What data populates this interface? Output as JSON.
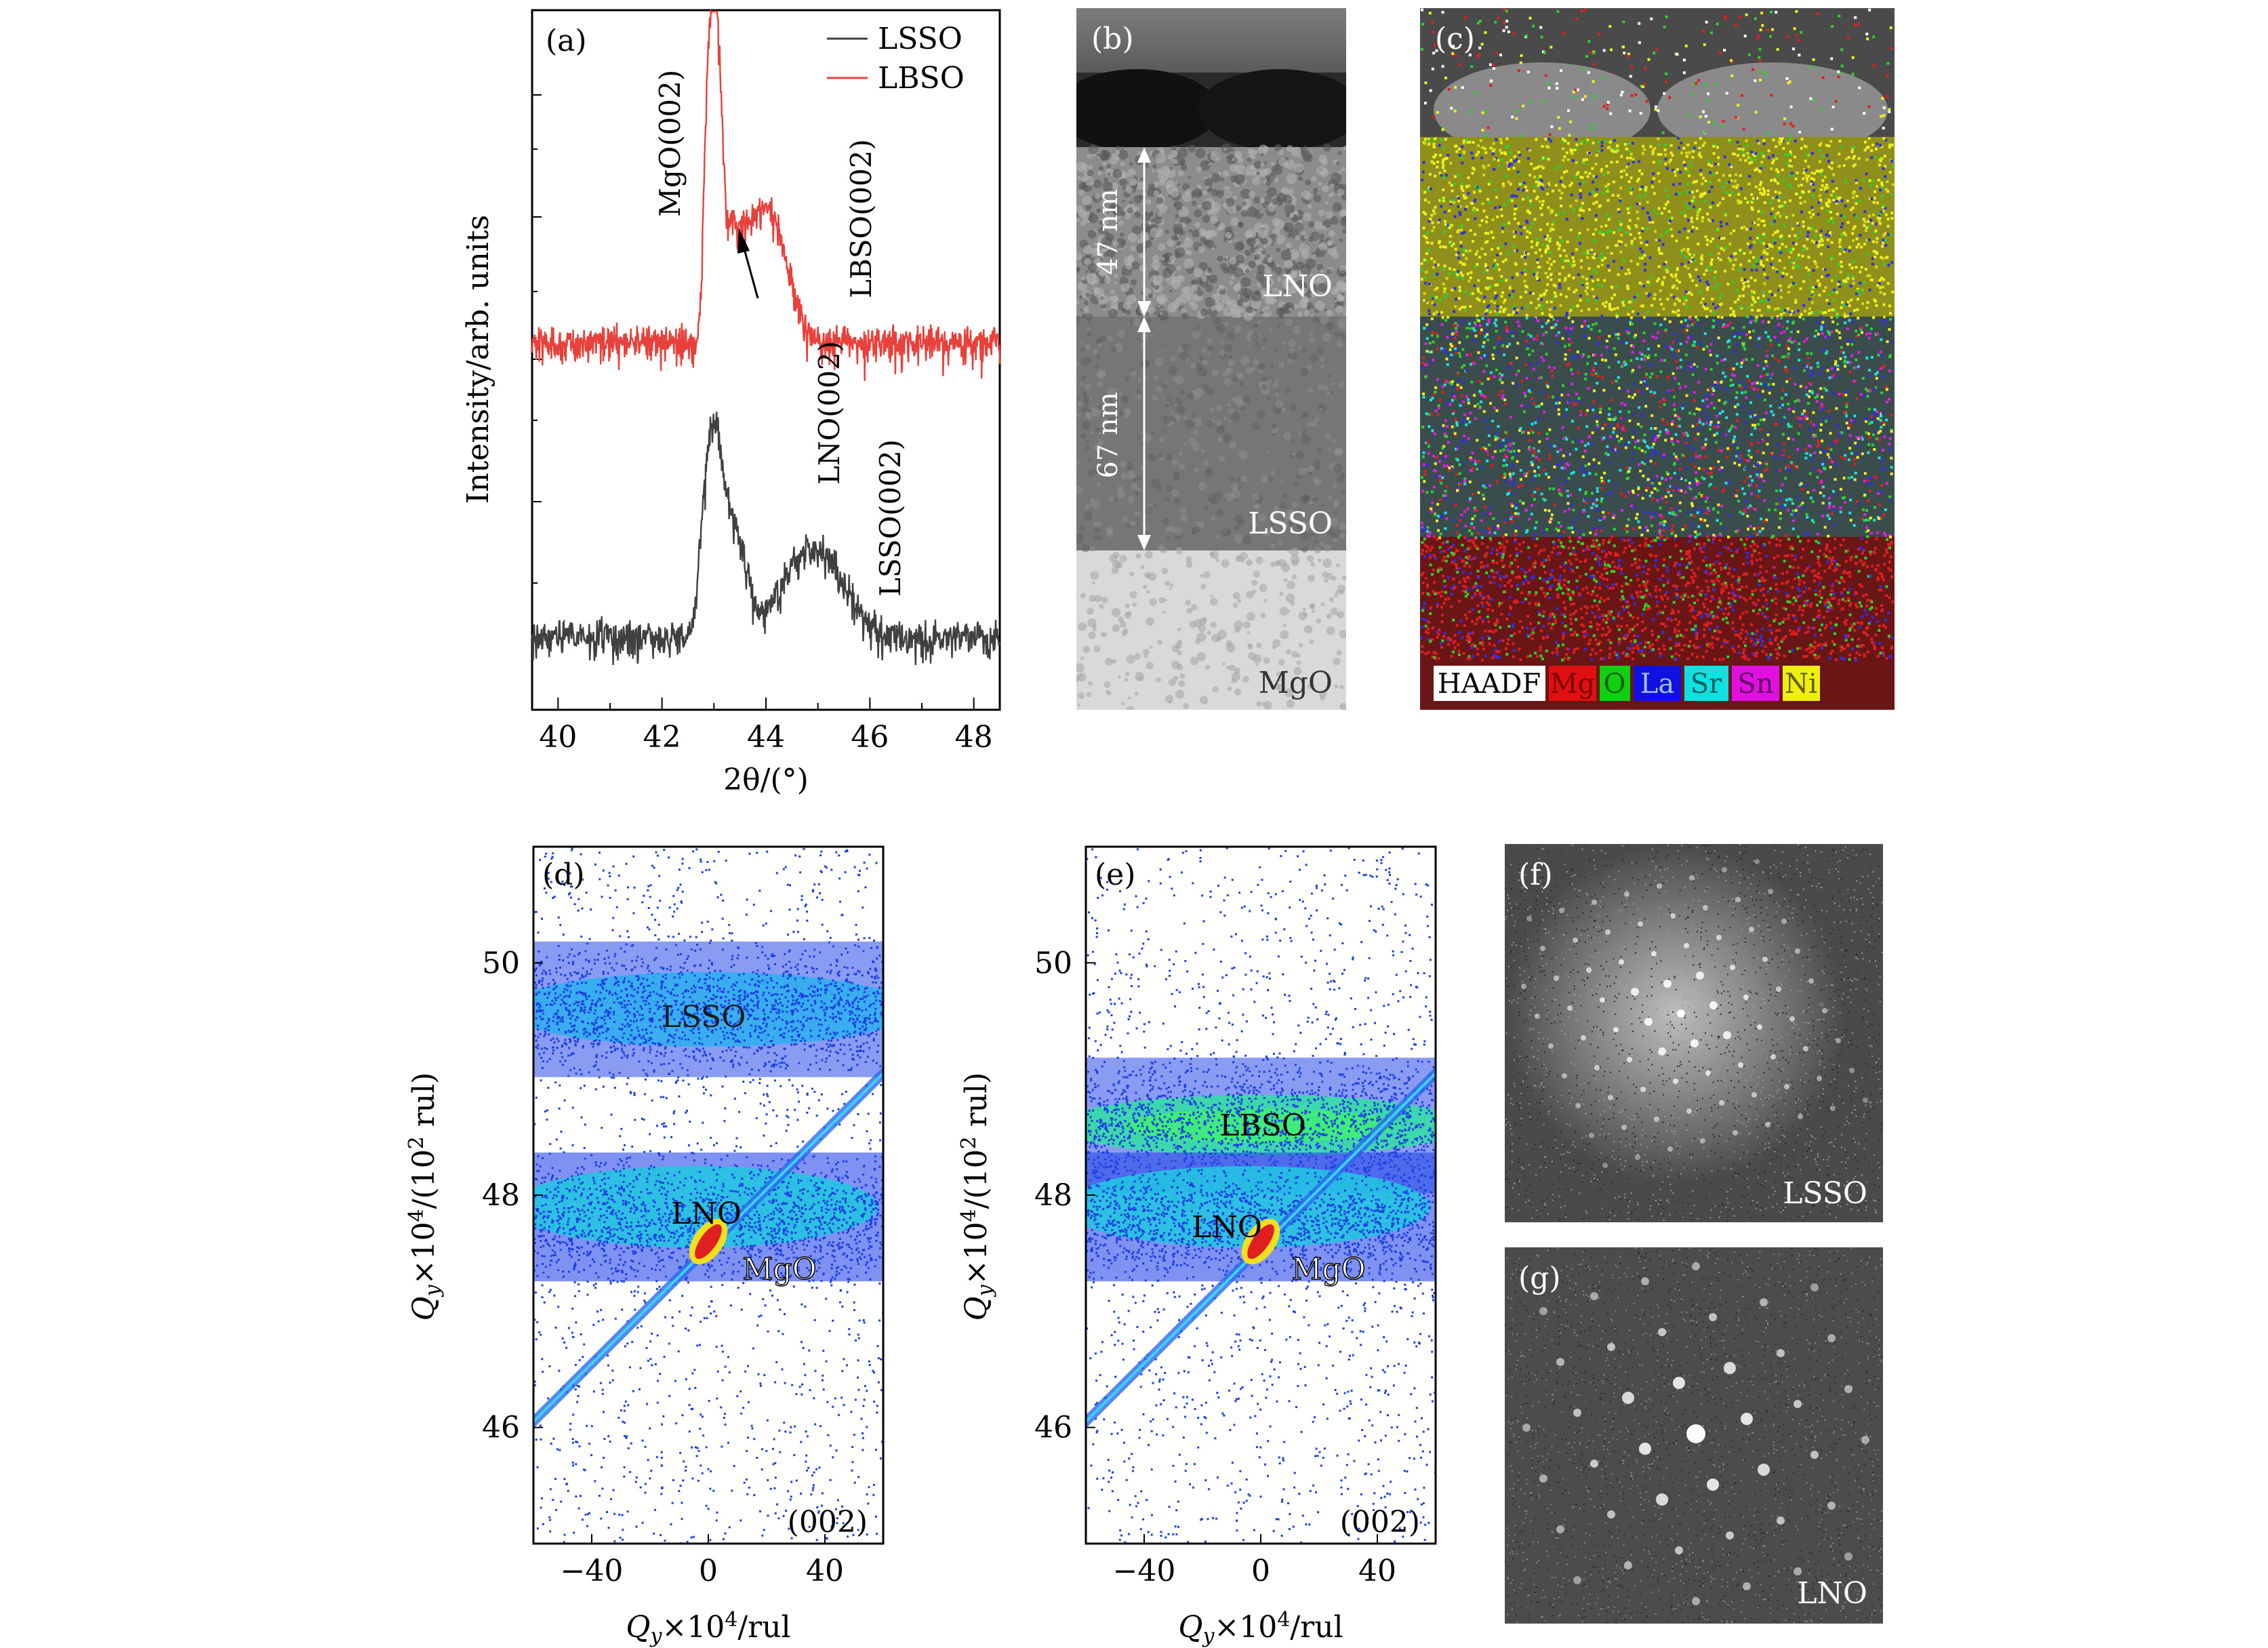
{
  "panel_a": {
    "letter": "(a)",
    "xlabel": "2θ/(°)",
    "ylabel": "Intensity/arb. units",
    "xticks": [
      "40",
      "42",
      "44",
      "46",
      "48"
    ],
    "legend": [
      "LSSO",
      "LBSO"
    ],
    "labels": {
      "mgo": "MgO(002)",
      "lbso": "LBSO(002)",
      "lno": "LNO(002)",
      "lsso": "LSSO(002)"
    }
  },
  "panel_b": {
    "letter": "(b)",
    "thickness_top": "47 nm",
    "thickness_bottom": "67 nm",
    "layers": [
      "LNO",
      "LSSO",
      "MgO"
    ]
  },
  "panel_c": {
    "letter": "(c)",
    "legend": [
      "HAADF",
      "Mg",
      "O",
      "La",
      "Sr",
      "Sn",
      "Ni"
    ]
  },
  "panel_d": {
    "letter": "(d)",
    "reflection": "(002)",
    "film": "LSSO",
    "electrode": "LNO",
    "substrate": "MgO",
    "yticks": [
      "46",
      "48",
      "50"
    ],
    "xticks": [
      "−40",
      "0",
      "40"
    ],
    "xlabel": "Qy×104/rul",
    "ylabel": "Qy×104/(102 rul)"
  },
  "panel_e": {
    "letter": "(e)",
    "reflection": "(002)",
    "film": "LBSO",
    "electrode": "LNO",
    "substrate": "MgO",
    "yticks": [
      "46",
      "48",
      "50"
    ],
    "xticks": [
      "−40",
      "0",
      "40"
    ],
    "xlabel": "Qy×104/rul",
    "ylabel": "Qy×104/(102 rul)"
  },
  "panel_f": {
    "letter": "(f)",
    "label": "LSSO"
  },
  "panel_g": {
    "letter": "(g)",
    "label": "LNO"
  },
  "colors": {
    "lsso_curve": "#404040",
    "lbso_curve": "#e8403a",
    "rsm_blue": "#1b3ee0",
    "rsm_cyan": "#20d8e8",
    "rsm_red": "#e02020",
    "eds_yellow": "#e8e81a",
    "eds_red": "#d81a1a"
  },
  "chart_data": [
    {
      "type": "line",
      "panel": "a",
      "xlabel": "2θ/(°)",
      "ylabel": "Intensity/arb. units",
      "xlim": [
        39.5,
        48.5
      ],
      "y_scale": "log",
      "series": [
        {
          "name": "LSSO",
          "peaks": [
            {
              "x": 43.0,
              "label": "MgO(002)"
            },
            {
              "x": 43.3,
              "label": "LNO(002)"
            },
            {
              "x": 44.9,
              "label": "LSSO(002)"
            }
          ]
        },
        {
          "name": "LBSO",
          "peaks": [
            {
              "x": 43.0,
              "label": "MgO(002)"
            },
            {
              "x": 43.3,
              "label": "LNO(002)"
            },
            {
              "x": 43.95,
              "label": "LBSO(002)"
            }
          ]
        }
      ]
    },
    {
      "type": "heatmap",
      "panel": "d",
      "xlim": [
        -60,
        60
      ],
      "ylim": [
        45,
        51
      ],
      "features": [
        {
          "name": "LSSO",
          "y": 49.6
        },
        {
          "name": "LNO",
          "y": 47.9
        },
        {
          "name": "MgO",
          "x": 0,
          "y": 47.6
        }
      ]
    },
    {
      "type": "heatmap",
      "panel": "e",
      "xlim": [
        -60,
        60
      ],
      "ylim": [
        45,
        51
      ],
      "features": [
        {
          "name": "LBSO",
          "y": 48.6
        },
        {
          "name": "LNO",
          "y": 47.9
        },
        {
          "name": "MgO",
          "x": 0,
          "y": 47.6
        }
      ]
    }
  ]
}
